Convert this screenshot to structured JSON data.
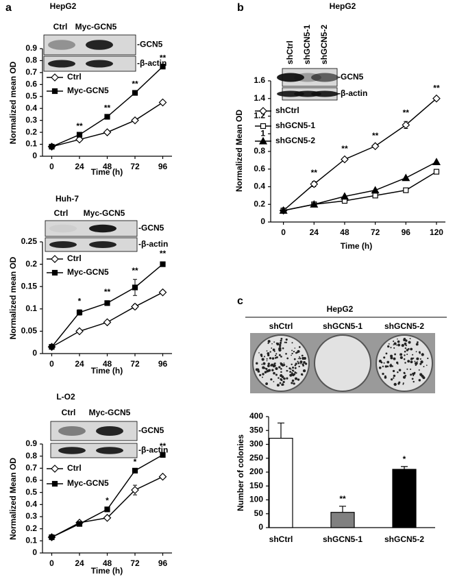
{
  "figure_labels": [
    "a",
    "b",
    "c"
  ],
  "chart_data": [
    {
      "type": "line",
      "title": "HepG2",
      "x_label": "Time (h)",
      "y_label": "Normalized mean OD",
      "blot": {
        "lanes": [
          "Ctrl",
          "Myc-GCN5"
        ],
        "bands": [
          "-GCN5",
          "-β-actin"
        ]
      },
      "x": [
        0,
        24,
        48,
        72,
        96
      ],
      "xlim": [
        -8,
        104
      ],
      "xticks": [
        0,
        24,
        48,
        72,
        96
      ],
      "ylim": [
        0,
        0.9
      ],
      "yticks": [
        0,
        0.1,
        0.2,
        0.3,
        0.4,
        0.5,
        0.6,
        0.7,
        0.8,
        0.9
      ],
      "series": [
        {
          "name": "Ctrl",
          "marker": "diamond-open",
          "color": "#000000",
          "values": [
            0.08,
            0.14,
            0.2,
            0.3,
            0.45
          ]
        },
        {
          "name": "Myc-GCN5",
          "marker": "square-filled",
          "color": "#000000",
          "values": [
            0.08,
            0.18,
            0.33,
            0.53,
            0.75
          ]
        }
      ],
      "significance": [
        null,
        "**",
        "**",
        "**",
        "**"
      ],
      "legend": "upper left"
    },
    {
      "type": "line",
      "title": "Huh-7",
      "x_label": "Time (h)",
      "y_label": "Normalized mean OD",
      "blot": {
        "lanes": [
          "Ctrl",
          "Myc-GCN5"
        ],
        "bands": [
          "-GCN5",
          "-β-actin"
        ]
      },
      "x": [
        0,
        24,
        48,
        72,
        96
      ],
      "xlim": [
        -8,
        104
      ],
      "xticks": [
        0,
        24,
        48,
        72,
        96
      ],
      "ylim": [
        0,
        0.25
      ],
      "yticks": [
        0,
        0.05,
        0.1,
        0.15,
        0.2,
        0.25
      ],
      "series": [
        {
          "name": "Ctrl",
          "marker": "diamond-open",
          "color": "#000000",
          "values": [
            0.015,
            0.05,
            0.07,
            0.105,
            0.137
          ],
          "errors": [
            0.005,
            0.003,
            0.003,
            0.005,
            0.003
          ]
        },
        {
          "name": "Myc-GCN5",
          "marker": "square-filled",
          "color": "#000000",
          "values": [
            0.015,
            0.092,
            0.113,
            0.148,
            0.2
          ],
          "errors": [
            0.005,
            0.006,
            0.005,
            0.018,
            0.004
          ]
        }
      ],
      "significance": [
        null,
        "*",
        "**",
        "**",
        "**"
      ],
      "legend": "upper left"
    },
    {
      "type": "line",
      "title": "L-O2",
      "x_label": "Time (h)",
      "y_label": "Normalized Mean OD",
      "blot": {
        "lanes": [
          "Ctrl",
          "Myc-GCN5"
        ],
        "bands": [
          "-GCN5",
          "-β-actin"
        ]
      },
      "x": [
        0,
        24,
        48,
        72,
        96
      ],
      "xlim": [
        -8,
        104
      ],
      "xticks": [
        0,
        24,
        48,
        72,
        96
      ],
      "ylim": [
        0,
        0.9
      ],
      "yticks": [
        0,
        0.1,
        0.2,
        0.3,
        0.4,
        0.5,
        0.6,
        0.7,
        0.8,
        0.9
      ],
      "series": [
        {
          "name": "Ctrl",
          "marker": "diamond-open",
          "color": "#000000",
          "values": [
            0.13,
            0.25,
            0.29,
            0.52,
            0.63
          ],
          "errors": [
            0.01,
            0.01,
            0.01,
            0.04,
            0.01
          ]
        },
        {
          "name": "Myc-GCN5",
          "marker": "square-filled",
          "color": "#000000",
          "values": [
            0.13,
            0.24,
            0.36,
            0.68,
            0.81
          ]
        }
      ],
      "significance": [
        null,
        null,
        "*",
        "*",
        "**"
      ],
      "legend": "upper left"
    },
    {
      "type": "line",
      "title": "HepG2",
      "x_label": "Time (h)",
      "y_label": "Normalized Mean OD",
      "blot": {
        "lanes": [
          "shCtrl",
          "shGCN5-1",
          "shGCN5-2"
        ],
        "bands": [
          "-GCN5",
          "-β-actin"
        ]
      },
      "x": [
        0,
        24,
        48,
        72,
        96,
        120
      ],
      "xlim": [
        -10,
        127
      ],
      "xticks": [
        0,
        24,
        48,
        72,
        96,
        120
      ],
      "ylim": [
        0,
        1.6
      ],
      "yticks": [
        0,
        0.2,
        0.4,
        0.6,
        0.8,
        1,
        1.2,
        1.4,
        1.6
      ],
      "series": [
        {
          "name": "shCtrl",
          "marker": "diamond-open",
          "color": "#000000",
          "values": [
            0.13,
            0.43,
            0.71,
            0.86,
            1.1,
            1.4
          ],
          "errors": [
            0.02,
            0.03,
            0.02,
            0.02,
            0.04,
            0.02
          ]
        },
        {
          "name": "shGCN5-1",
          "marker": "square-open",
          "color": "#000000",
          "values": [
            0.13,
            0.2,
            0.24,
            0.3,
            0.36,
            0.57
          ],
          "errors": [
            0.01,
            0.01,
            0.01,
            0.01,
            0.01,
            0.02
          ]
        },
        {
          "name": "shGCN5-2",
          "marker": "triangle-filled",
          "color": "#000000",
          "values": [
            0.13,
            0.2,
            0.29,
            0.36,
            0.5,
            0.68
          ]
        }
      ],
      "significance": [
        null,
        "**",
        "**",
        "**",
        "**",
        "**"
      ],
      "legend": "upper left"
    },
    {
      "type": "bar",
      "title": "HepG2",
      "y_label": "Number of colonies",
      "plates": [
        "shCtrl",
        "shGCN5-1",
        "shGCN5-2"
      ],
      "categories": [
        "shCtrl",
        "shGCN5-1",
        "shGCN5-2"
      ],
      "values": [
        322,
        55,
        210
      ],
      "errors": [
        55,
        22,
        10
      ],
      "colors": [
        "#ffffff",
        "#808080",
        "#000000"
      ],
      "ylim": [
        0,
        400
      ],
      "yticks": [
        0,
        50,
        100,
        150,
        200,
        250,
        300,
        350,
        400
      ],
      "significance": [
        null,
        "**",
        "*"
      ]
    }
  ]
}
